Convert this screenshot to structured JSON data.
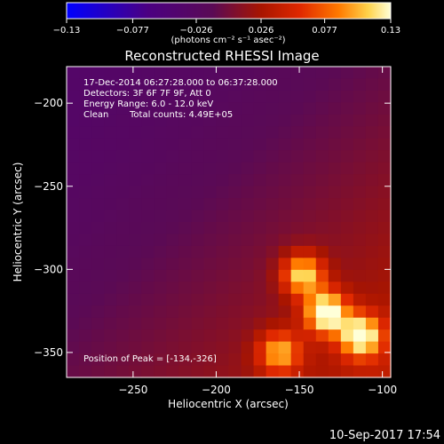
{
  "chart_data": {
    "type": "heatmap",
    "title": "Reconstructed RHESSI Image",
    "xlabel": "Heliocentric X (arcsec)",
    "ylabel": "Heliocentric Y (arcsec)",
    "xlim": [
      -290,
      -95
    ],
    "ylim": [
      -365,
      -178
    ],
    "x_ticks": [
      -250,
      -200,
      -150,
      -100
    ],
    "y_ticks": [
      -200,
      -250,
      -300,
      -350
    ],
    "colorbar": {
      "min": -0.13,
      "max": 0.13,
      "ticks": [
        -0.13,
        -0.077,
        -0.026,
        0.026,
        0.077,
        0.13
      ],
      "tick_labels": [
        "−0.13",
        "−0.077",
        "−0.026",
        "0.026",
        "0.077",
        "0.13"
      ],
      "label": "(photons cm⁻² s⁻¹ asec⁻²)"
    },
    "annotations": {
      "time_range": "17-Dec-2014 06:27:28.000 to 06:37:28.000",
      "detectors": "Detectors: 3F 6F 7F 9F, Att 0",
      "energy": "Energy Range: 6.0 - 12.0 keV",
      "clean": "Clean",
      "counts": "Total counts: 4.49E+05",
      "peak": "Position of Peak = [-134,-326]"
    },
    "sources": [
      {
        "x": -148,
        "y": -303,
        "peak": 0.11
      },
      {
        "x": -134,
        "y": -326,
        "peak": 0.13
      },
      {
        "x": -113,
        "y": -340,
        "peak": 0.12
      },
      {
        "x": -162,
        "y": -350,
        "peak": 0.09
      }
    ],
    "background": "diffuse dark-red emission increasing toward the bottom-right"
  },
  "footer": {
    "date": "10-Sep-2017 17:54"
  }
}
